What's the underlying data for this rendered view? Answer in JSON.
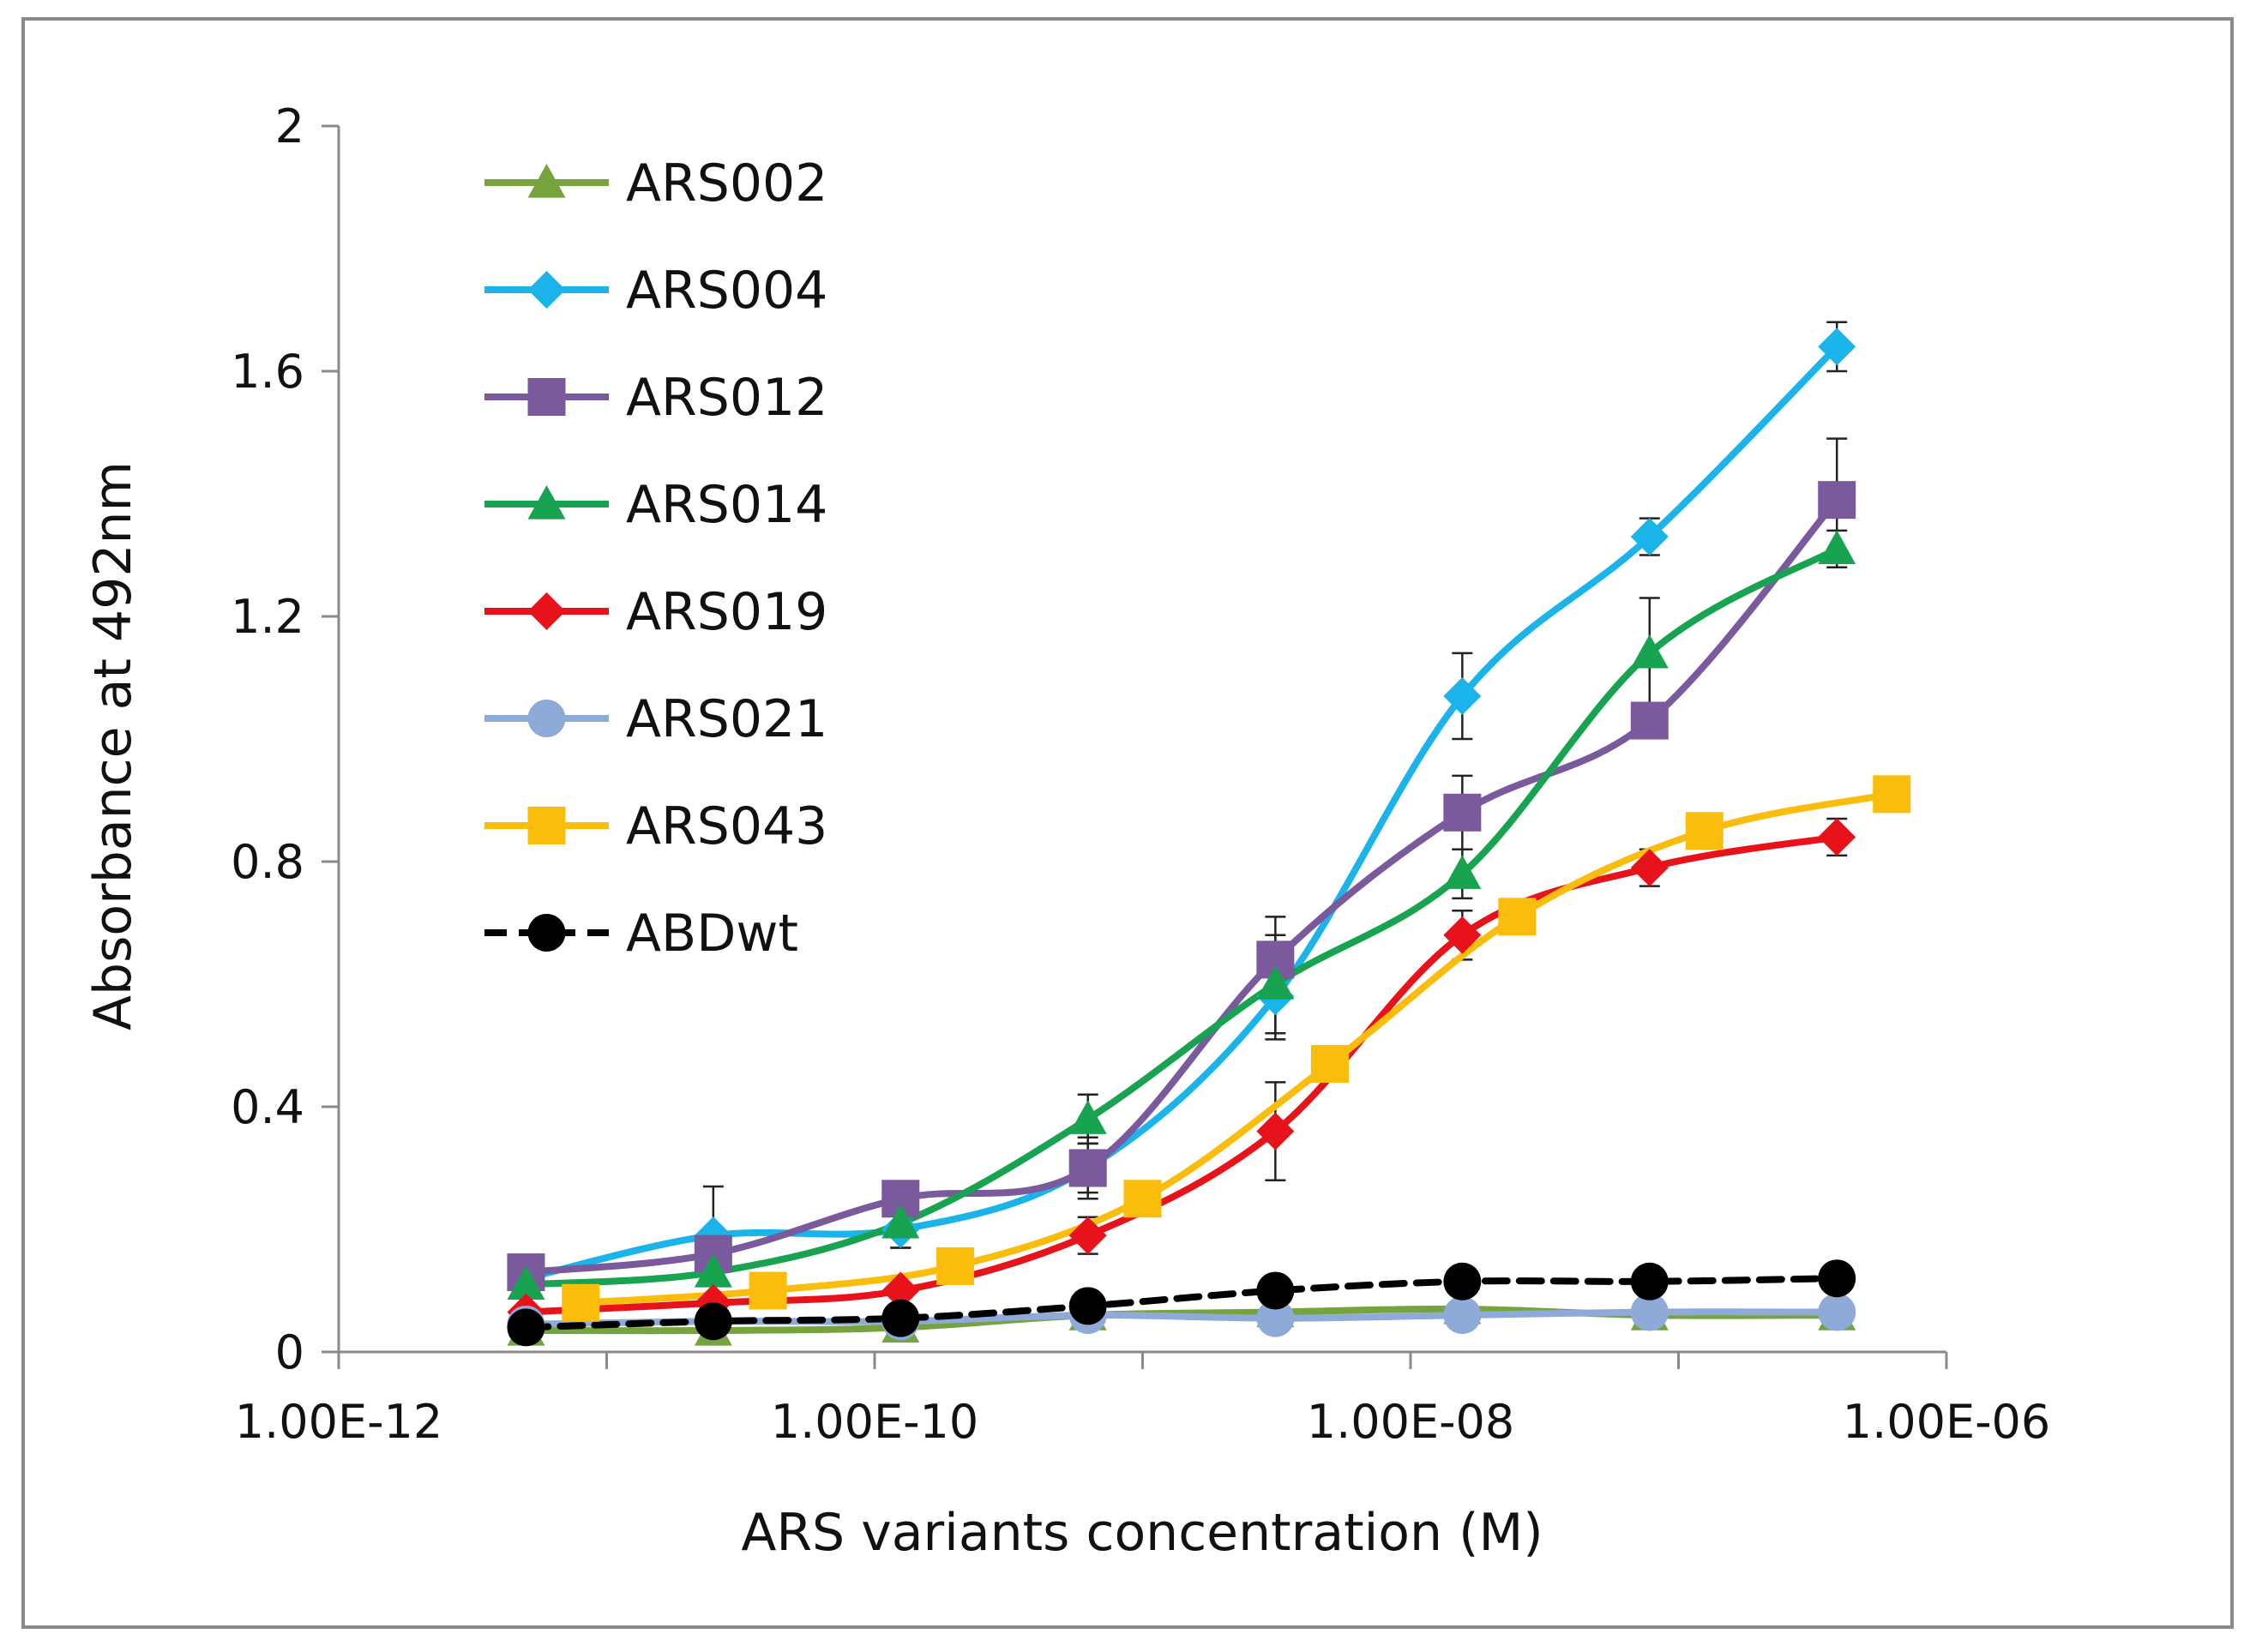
{
  "chart_data": {
    "type": "line",
    "title": "",
    "xlabel": "ARS variants concentration (M)",
    "ylabel": "Absorbance at 492nm",
    "xscale": "log",
    "xlim": [
      1e-12,
      1e-06
    ],
    "ylim": [
      0,
      2
    ],
    "x_tick_labels": [
      "1.00E-12",
      "1.00E-10",
      "1.00E-08",
      "1.00E-06"
    ],
    "y_tick_labels": [
      "0",
      "0.4",
      "0.8",
      "1.2",
      "1.6",
      "2"
    ],
    "legend_position": "top-left",
    "series": [
      {
        "name": "ARS002",
        "color": "#77a33f",
        "marker": "triangle",
        "dashed": false,
        "x": [
          5e-12,
          2.5e-11,
          1.25e-10,
          6.25e-10,
          3.13e-09,
          1.56e-08,
          7.8e-08,
          3.9e-07
        ],
        "y": [
          0.035,
          0.035,
          0.04,
          0.06,
          0.065,
          0.07,
          0.06,
          0.06
        ],
        "err": []
      },
      {
        "name": "ARS004",
        "color": "#1ab3ea",
        "marker": "diamond",
        "dashed": false,
        "x": [
          5e-12,
          2.5e-11,
          1.25e-10,
          6.25e-10,
          3.13e-09,
          1.56e-08,
          7.8e-08,
          3.9e-07
        ],
        "y": [
          0.12,
          0.19,
          0.2,
          0.3,
          0.58,
          1.07,
          1.33,
          1.64
        ],
        "err": [
          0,
          0.08,
          0.03,
          0.04,
          0.07,
          0.07,
          0.03,
          0.04
        ]
      },
      {
        "name": "ARS012",
        "color": "#7a5a9c",
        "marker": "square",
        "dashed": false,
        "x": [
          5e-12,
          2.5e-11,
          1.25e-10,
          6.25e-10,
          3.13e-09,
          1.56e-08,
          7.8e-08,
          3.9e-07
        ],
        "y": [
          0.13,
          0.16,
          0.25,
          0.3,
          0.64,
          0.88,
          1.03,
          1.39
        ],
        "err": [
          0,
          0,
          0,
          0.05,
          0.07,
          0.06,
          0,
          0.1
        ]
      },
      {
        "name": "ARS014",
        "color": "#18a350",
        "marker": "triangle",
        "dashed": false,
        "x": [
          5e-12,
          2.5e-11,
          1.25e-10,
          6.25e-10,
          3.13e-09,
          1.56e-08,
          7.8e-08,
          3.9e-07
        ],
        "y": [
          0.11,
          0.13,
          0.21,
          0.38,
          0.6,
          0.78,
          1.14,
          1.31
        ],
        "err": [
          0,
          0,
          0.04,
          0.04,
          0.08,
          0.04,
          0.09,
          0.03
        ]
      },
      {
        "name": "ARS019",
        "color": "#e8121b",
        "marker": "diamond",
        "dashed": false,
        "x": [
          5e-12,
          2.5e-11,
          1.25e-10,
          6.25e-10,
          3.13e-09,
          1.56e-08,
          7.8e-08,
          3.9e-07
        ],
        "y": [
          0.065,
          0.08,
          0.1,
          0.19,
          0.36,
          0.68,
          0.79,
          0.84
        ],
        "err": [
          0,
          0,
          0,
          0.03,
          0.08,
          0.04,
          0.03,
          0.03
        ]
      },
      {
        "name": "ARS021",
        "color": "#8eaad8",
        "marker": "circle",
        "dashed": false,
        "x": [
          5e-12,
          2.5e-11,
          1.25e-10,
          6.25e-10,
          3.13e-09,
          1.56e-08,
          7.8e-08,
          3.9e-07
        ],
        "y": [
          0.045,
          0.05,
          0.05,
          0.06,
          0.055,
          0.06,
          0.065,
          0.065
        ],
        "err": []
      },
      {
        "name": "ARS043",
        "color": "#fbbd0c",
        "marker": "square",
        "dashed": false,
        "x": [
          8e-12,
          4e-11,
          2e-10,
          1e-09,
          5e-09,
          2.5e-08,
          1.25e-07,
          6.25e-07
        ],
        "y": [
          0.08,
          0.1,
          0.14,
          0.25,
          0.47,
          0.71,
          0.85,
          0.91
        ],
        "err": []
      },
      {
        "name": "ABDwt",
        "color": "#000000",
        "marker": "circle",
        "dashed": true,
        "x": [
          5e-12,
          2.5e-11,
          1.25e-10,
          6.25e-10,
          3.13e-09,
          1.56e-08,
          7.8e-08,
          3.9e-07
        ],
        "y": [
          0.04,
          0.05,
          0.055,
          0.075,
          0.1,
          0.115,
          0.115,
          0.12
        ],
        "err": []
      }
    ]
  }
}
